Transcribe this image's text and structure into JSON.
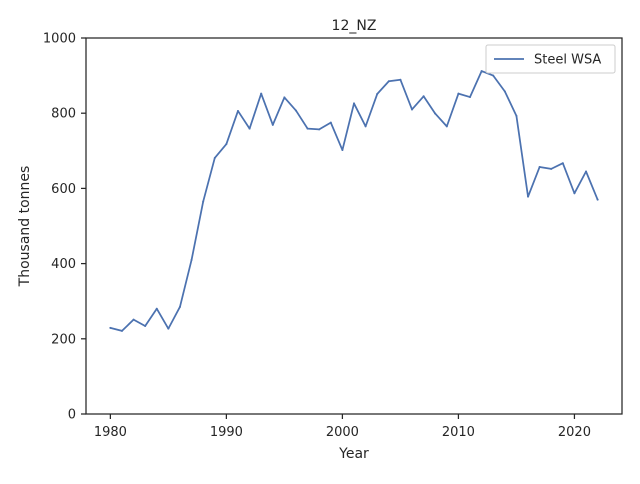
{
  "chart_data": {
    "type": "line",
    "title": "12_NZ",
    "xlabel": "Year",
    "ylabel": "Thousand tonnes",
    "xlim": [
      1977.9,
      2024.1
    ],
    "ylim": [
      0,
      1000
    ],
    "x_ticks": [
      1980,
      1990,
      2000,
      2010,
      2020
    ],
    "y_ticks": [
      0,
      200,
      400,
      600,
      800,
      1000
    ],
    "grid": false,
    "legend_position": "top-right",
    "x": [
      1980,
      1981,
      1982,
      1983,
      1984,
      1985,
      1986,
      1987,
      1988,
      1989,
      1990,
      1991,
      1992,
      1993,
      1994,
      1995,
      1996,
      1997,
      1998,
      1999,
      2000,
      2001,
      2002,
      2003,
      2004,
      2005,
      2006,
      2007,
      2008,
      2009,
      2010,
      2011,
      2012,
      2013,
      2014,
      2015,
      2016,
      2017,
      2018,
      2019,
      2020,
      2021,
      2022
    ],
    "series": [
      {
        "name": "Steel WSA",
        "color": "#4c72b0",
        "values": [
          229,
          221,
          251,
          234,
          280,
          227,
          285,
          410,
          565,
          681,
          718,
          806,
          759,
          852,
          769,
          842,
          807,
          759,
          757,
          775,
          702,
          826,
          765,
          851,
          885,
          889,
          810,
          845,
          799,
          765,
          852,
          843,
          912,
          900,
          858,
          793,
          578,
          657,
          652,
          667,
          587,
          645,
          570
        ]
      }
    ]
  }
}
